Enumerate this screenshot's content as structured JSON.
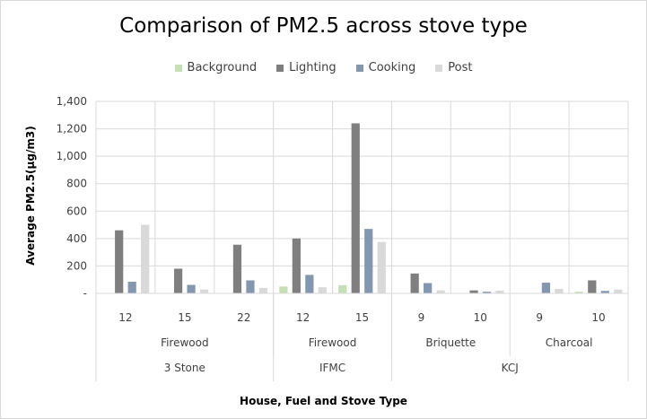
{
  "chart_data": {
    "type": "bar",
    "title": "Comparison of PM2.5 across stove type",
    "ylabel": "Average PM2.5(μg/m3)",
    "xlabel": "House, Fuel and Stove Type",
    "ylim": [
      0,
      1400
    ],
    "y_ticks": [
      "-",
      "200",
      "400",
      "600",
      "800",
      "1,000",
      "1,200",
      "1,400"
    ],
    "grid": true,
    "legend_position": "top",
    "categories": [
      "12",
      "15",
      "22",
      "12",
      "15",
      "9",
      "10",
      "9",
      "10"
    ],
    "fuel_groups": [
      {
        "label": "Firewood",
        "count": 3
      },
      {
        "label": "Firewood",
        "count": 2
      },
      {
        "label": "Briquette",
        "count": 2
      },
      {
        "label": "Charcoal",
        "count": 2
      }
    ],
    "stove_groups": [
      {
        "label": "3 Stone",
        "count": 3
      },
      {
        "label": "IFMC",
        "count": 2
      },
      {
        "label": "KCJ",
        "count": 4
      }
    ],
    "series": [
      {
        "name": "Background",
        "color": "#c5e0b4",
        "values": [
          0,
          0,
          0,
          50,
          60,
          0,
          0,
          0,
          12
        ]
      },
      {
        "name": "Lighting",
        "color": "#7f7f7f",
        "values": [
          460,
          180,
          355,
          400,
          1240,
          145,
          22,
          0,
          95
        ]
      },
      {
        "name": "Cooking",
        "color": "#8497b0",
        "values": [
          85,
          62,
          95,
          135,
          470,
          75,
          12,
          78,
          18
        ]
      },
      {
        "name": "Post",
        "color": "#d9d9d9",
        "values": [
          500,
          28,
          40,
          45,
          375,
          22,
          20,
          33,
          28
        ]
      }
    ]
  }
}
